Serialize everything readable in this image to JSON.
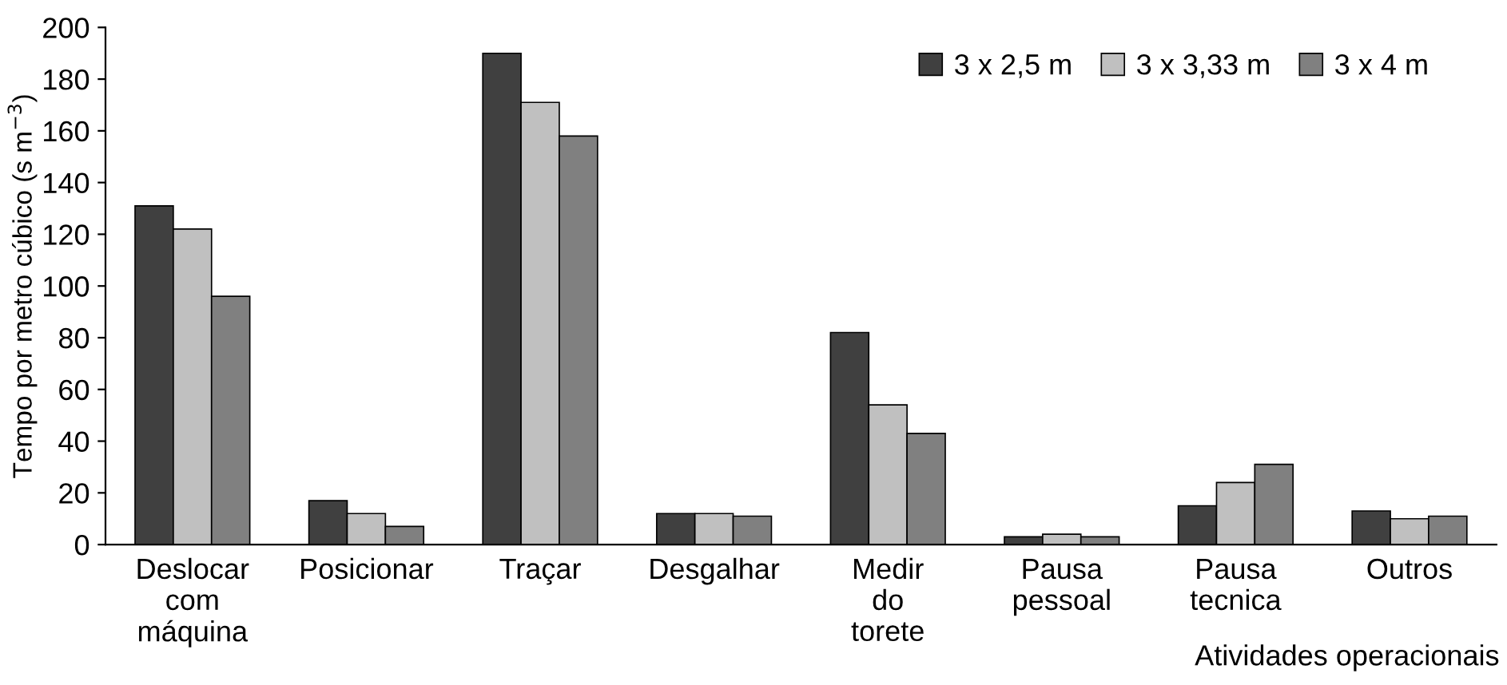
{
  "chart_data": {
    "type": "bar",
    "xlabel": "Atividades operacionais",
    "ylabel": "Tempo por metro cúbico (s m$^{−3}$)",
    "categories": [
      "Deslocar\ncom\nmáquina",
      "Posicionar",
      "Traçar",
      "Desgalhar",
      "Medir\ndo\ntorete",
      "Pausa\npessoal",
      "Pausa\ntecnica",
      "Outros"
    ],
    "series": [
      {
        "name": "3 x 2,5 m",
        "color": "#404040",
        "values": [
          131,
          17,
          190,
          12,
          82,
          3,
          15,
          13
        ]
      },
      {
        "name": "3 x 3,33 m",
        "color": "#c0c0c0",
        "values": [
          122,
          12,
          171,
          12,
          54,
          4,
          24,
          10
        ]
      },
      {
        "name": "3 x 4 m",
        "color": "#808080",
        "values": [
          96,
          7,
          158,
          11,
          43,
          3,
          31,
          11
        ]
      }
    ],
    "ylim": [
      0,
      200
    ],
    "yticks": [
      0,
      20,
      40,
      60,
      80,
      100,
      120,
      140,
      160,
      180,
      200
    ],
    "grid": false,
    "legend": "top right"
  }
}
